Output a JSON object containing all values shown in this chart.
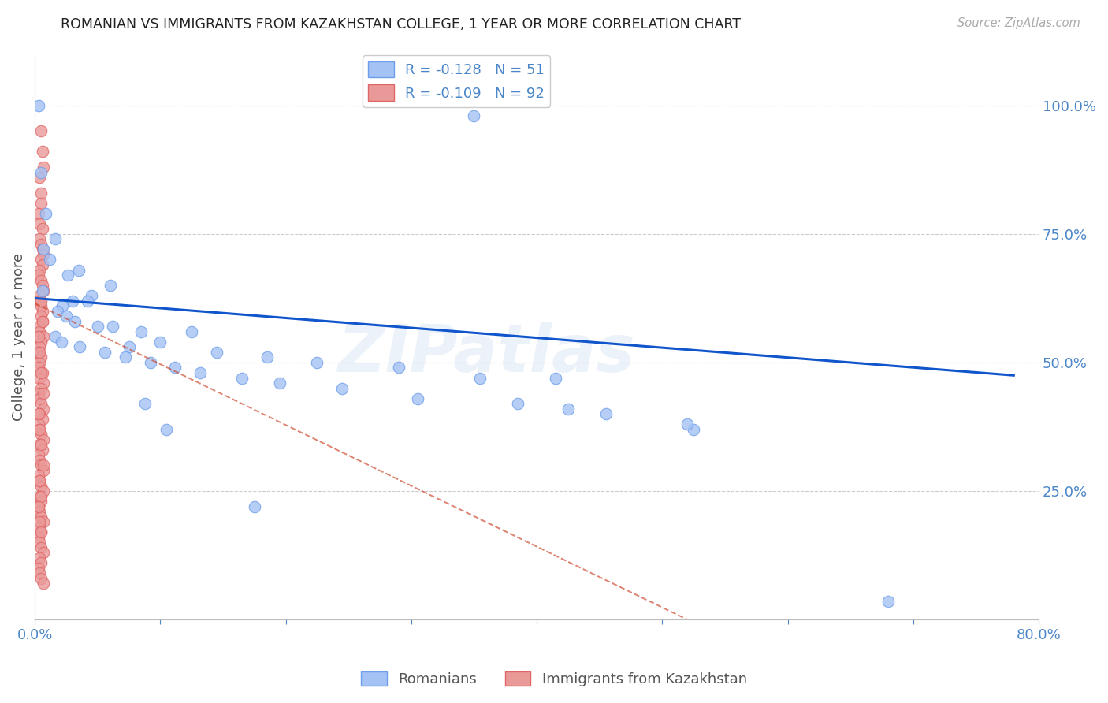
{
  "title": "ROMANIAN VS IMMIGRANTS FROM KAZAKHSTAN COLLEGE, 1 YEAR OR MORE CORRELATION CHART",
  "source": "Source: ZipAtlas.com",
  "ylabel": "College, 1 year or more",
  "legend_label_blue": "Romanians",
  "legend_label_pink": "Immigrants from Kazakhstan",
  "R_blue": -0.128,
  "N_blue": 51,
  "R_pink": -0.109,
  "N_pink": 92,
  "xlim": [
    0.0,
    0.8
  ],
  "ylim": [
    0.0,
    1.1
  ],
  "color_blue": "#a4c2f4",
  "color_pink": "#ea9999",
  "color_trendline_blue": "#1155cc",
  "color_trendline_pink": "#cc4125",
  "color_axis_text": "#4a86c8",
  "color_grid": "#cccccc",
  "watermark": "ZIPatlas",
  "blue_x": [
    0.003,
    0.005,
    0.35,
    0.007,
    0.012,
    0.035,
    0.06,
    0.045,
    0.03,
    0.022,
    0.018,
    0.025,
    0.032,
    0.05,
    0.085,
    0.125,
    0.1,
    0.075,
    0.145,
    0.185,
    0.225,
    0.29,
    0.355,
    0.425,
    0.525,
    0.016,
    0.021,
    0.036,
    0.056,
    0.072,
    0.092,
    0.112,
    0.132,
    0.165,
    0.195,
    0.245,
    0.305,
    0.385,
    0.455,
    0.415,
    0.52,
    0.68,
    0.006,
    0.009,
    0.016,
    0.026,
    0.042,
    0.062,
    0.088,
    0.105,
    0.175
  ],
  "blue_y": [
    1.0,
    0.87,
    0.98,
    0.72,
    0.7,
    0.68,
    0.65,
    0.63,
    0.62,
    0.61,
    0.6,
    0.59,
    0.58,
    0.57,
    0.56,
    0.56,
    0.54,
    0.53,
    0.52,
    0.51,
    0.5,
    0.49,
    0.47,
    0.41,
    0.37,
    0.55,
    0.54,
    0.53,
    0.52,
    0.51,
    0.5,
    0.49,
    0.48,
    0.47,
    0.46,
    0.45,
    0.43,
    0.42,
    0.4,
    0.47,
    0.38,
    0.035,
    0.64,
    0.79,
    0.74,
    0.67,
    0.62,
    0.57,
    0.42,
    0.37,
    0.22
  ],
  "pink_x": [
    0.005,
    0.006,
    0.007,
    0.004,
    0.005,
    0.005,
    0.003,
    0.004,
    0.006,
    0.004,
    0.005,
    0.006,
    0.007,
    0.005,
    0.006,
    0.004,
    0.003,
    0.005,
    0.006,
    0.007,
    0.004,
    0.003,
    0.005,
    0.006,
    0.005,
    0.006,
    0.003,
    0.004,
    0.007,
    0.005,
    0.004,
    0.003,
    0.005,
    0.004,
    0.003,
    0.006,
    0.004,
    0.007,
    0.005,
    0.003,
    0.004,
    0.005,
    0.007,
    0.004,
    0.006,
    0.003,
    0.004,
    0.005,
    0.007,
    0.004,
    0.006,
    0.003,
    0.004,
    0.005,
    0.007,
    0.003,
    0.004,
    0.005,
    0.007,
    0.004,
    0.005,
    0.003,
    0.004,
    0.005,
    0.007,
    0.004,
    0.005,
    0.003,
    0.004,
    0.005,
    0.007,
    0.004,
    0.005,
    0.003,
    0.004,
    0.005,
    0.007,
    0.005,
    0.006,
    0.003,
    0.004,
    0.005,
    0.007,
    0.003,
    0.004,
    0.005,
    0.007,
    0.004,
    0.005,
    0.003,
    0.004,
    0.005
  ],
  "pink_y": [
    0.95,
    0.91,
    0.88,
    0.86,
    0.83,
    0.81,
    0.79,
    0.77,
    0.76,
    0.74,
    0.73,
    0.72,
    0.71,
    0.7,
    0.69,
    0.68,
    0.67,
    0.66,
    0.65,
    0.64,
    0.63,
    0.62,
    0.61,
    0.6,
    0.59,
    0.58,
    0.57,
    0.56,
    0.55,
    0.54,
    0.53,
    0.52,
    0.51,
    0.5,
    0.49,
    0.48,
    0.47,
    0.46,
    0.45,
    0.44,
    0.43,
    0.42,
    0.41,
    0.4,
    0.39,
    0.38,
    0.37,
    0.36,
    0.35,
    0.34,
    0.33,
    0.32,
    0.31,
    0.3,
    0.29,
    0.28,
    0.27,
    0.26,
    0.25,
    0.24,
    0.23,
    0.22,
    0.21,
    0.2,
    0.19,
    0.18,
    0.17,
    0.16,
    0.15,
    0.14,
    0.13,
    0.12,
    0.11,
    0.1,
    0.09,
    0.08,
    0.07,
    0.62,
    0.58,
    0.55,
    0.52,
    0.48,
    0.44,
    0.4,
    0.37,
    0.34,
    0.3,
    0.27,
    0.24,
    0.22,
    0.19,
    0.17
  ],
  "blue_trend_x0": 0.0,
  "blue_trend_x1": 0.78,
  "blue_trend_y0": 0.625,
  "blue_trend_y1": 0.475,
  "pink_trend_x0": 0.0,
  "pink_trend_x1": 0.52,
  "pink_trend_y0": 0.615,
  "pink_trend_y1": 0.0
}
